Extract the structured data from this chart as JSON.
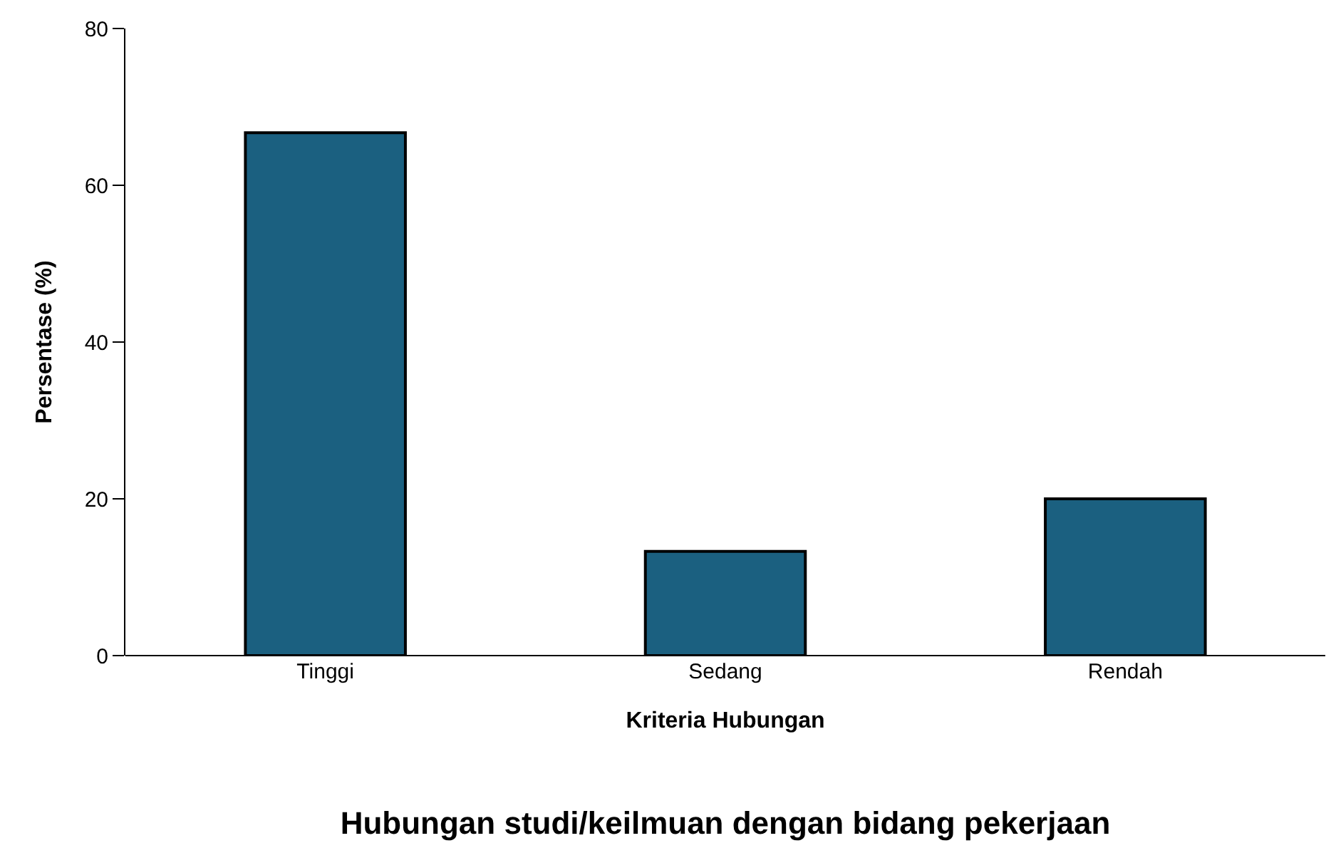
{
  "chart_data": {
    "type": "bar",
    "title": "Hubungan studi/keilmuan dengan bidang pekerjaan",
    "xlabel": "Kriteria Hubungan",
    "ylabel": "Persentase (%)",
    "categories": [
      "Tinggi",
      "Sedang",
      "Rendah"
    ],
    "values": [
      66.7,
      13.3,
      20
    ],
    "color": "#1b6080",
    "ylim": [
      0,
      80
    ],
    "yticks": [
      0,
      20,
      40,
      60,
      80
    ],
    "grid": false,
    "legend": false
  }
}
